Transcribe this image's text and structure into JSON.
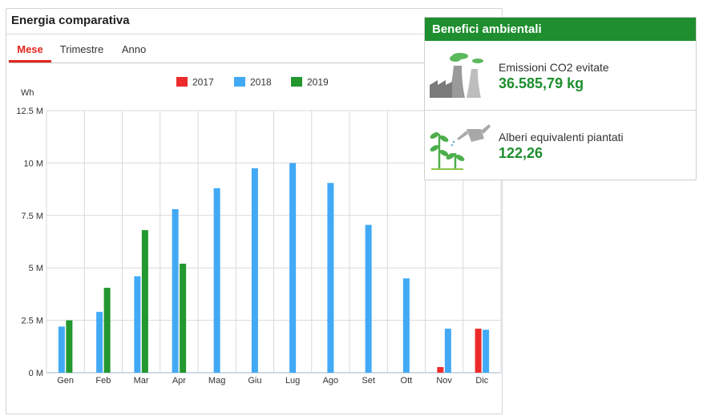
{
  "energy_panel": {
    "title": "Energia comparativa",
    "tabs": [
      {
        "label": "Mese",
        "active": true
      },
      {
        "label": "Trimestre",
        "active": false
      },
      {
        "label": "Anno",
        "active": false
      }
    ]
  },
  "colors": {
    "2017": "#ed2b2b",
    "2018": "#42a9f5",
    "2019": "#22982f",
    "accent_tab": "#e1261c",
    "env_green": "#1e8e2f"
  },
  "chart_data": {
    "type": "bar",
    "ylabel": "Wh",
    "ylim": [
      0,
      12500000
    ],
    "yticks": [
      0,
      2500000,
      5000000,
      7500000,
      10000000,
      12500000
    ],
    "ytick_labels": [
      "0 M",
      "2.5 M",
      "5 M",
      "7.5 M",
      "10 M",
      "12.5 M"
    ],
    "categories": [
      "Gen",
      "Feb",
      "Mar",
      "Apr",
      "Mag",
      "Giu",
      "Lug",
      "Ago",
      "Set",
      "Ott",
      "Nov",
      "Dic"
    ],
    "grid": true,
    "legend_position": "top-center",
    "series": [
      {
        "name": "2017",
        "values": [
          null,
          null,
          null,
          null,
          null,
          null,
          null,
          null,
          null,
          null,
          270000,
          2100000
        ]
      },
      {
        "name": "2018",
        "values": [
          2200000,
          2900000,
          4600000,
          7800000,
          8800000,
          9750000,
          10000000,
          9050000,
          7050000,
          4500000,
          2100000,
          2050000
        ]
      },
      {
        "name": "2019",
        "values": [
          2500000,
          4050000,
          6800000,
          5200000,
          null,
          null,
          null,
          null,
          null,
          null,
          null,
          null
        ]
      }
    ]
  },
  "env_panel": {
    "title": "Benefici ambientali",
    "co2": {
      "label": "Emissioni CO2 evitate",
      "value": "36.585,79 kg",
      "icon": "factory-icon"
    },
    "trees": {
      "label": "Alberi equivalenti piantati",
      "value": "122,26",
      "icon": "watering-can-plants-icon"
    }
  }
}
